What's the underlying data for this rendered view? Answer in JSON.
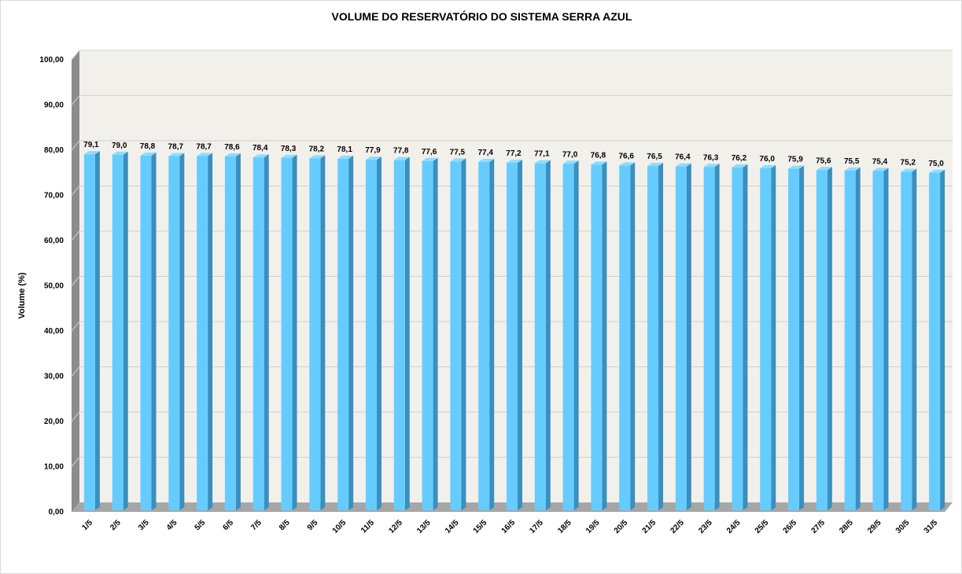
{
  "chart_data": {
    "type": "bar",
    "title": "VOLUME DO RESERVATÓRIO DO SISTEMA SERRA AZUL",
    "xlabel": "",
    "ylabel": "Volume (%)",
    "ylim": [
      0,
      100
    ],
    "yticks": [
      "0,00",
      "10,00",
      "20,00",
      "30,00",
      "40,00",
      "50,00",
      "60,00",
      "70,00",
      "80,00",
      "90,00",
      "100,00"
    ],
    "categories": [
      "1/5",
      "2/5",
      "3/5",
      "4/5",
      "5/5",
      "6/5",
      "7/5",
      "8/5",
      "9/5",
      "10/5",
      "11/5",
      "12/5",
      "13/5",
      "14/5",
      "15/5",
      "16/5",
      "17/5",
      "18/5",
      "19/5",
      "20/5",
      "21/5",
      "22/5",
      "23/5",
      "24/5",
      "25/5",
      "26/5",
      "27/5",
      "28/5",
      "29/5",
      "30/5",
      "31/5"
    ],
    "values": [
      79.1,
      79.0,
      78.8,
      78.7,
      78.7,
      78.6,
      78.4,
      78.3,
      78.2,
      78.1,
      77.9,
      77.8,
      77.6,
      77.5,
      77.4,
      77.2,
      77.1,
      77.0,
      76.8,
      76.6,
      76.5,
      76.4,
      76.3,
      76.2,
      76.0,
      75.9,
      75.6,
      75.5,
      75.4,
      75.2,
      75.0
    ],
    "labels": [
      "79,1",
      "79,0",
      "78,8",
      "78,7",
      "78,7",
      "78,6",
      "78,4",
      "78,3",
      "78,2",
      "78,1",
      "77,9",
      "77,8",
      "77,6",
      "77,5",
      "77,4",
      "77,2",
      "77,1",
      "77,0",
      "76,8",
      "76,6",
      "76,5",
      "76,4",
      "76,3",
      "76,2",
      "76,0",
      "75,9",
      "75,6",
      "75,5",
      "75,4",
      "75,2",
      "75,0"
    ],
    "grid": true,
    "legend": "none",
    "colors": {
      "bar_front": "#66ccff",
      "bar_side": "#3a8fbf",
      "bar_top": "#8fdcff",
      "wall": "#f2f0eb",
      "floor": "#a6a6a6",
      "side_wall": "#8c8c8c",
      "grid": "#d0d0d0"
    }
  }
}
